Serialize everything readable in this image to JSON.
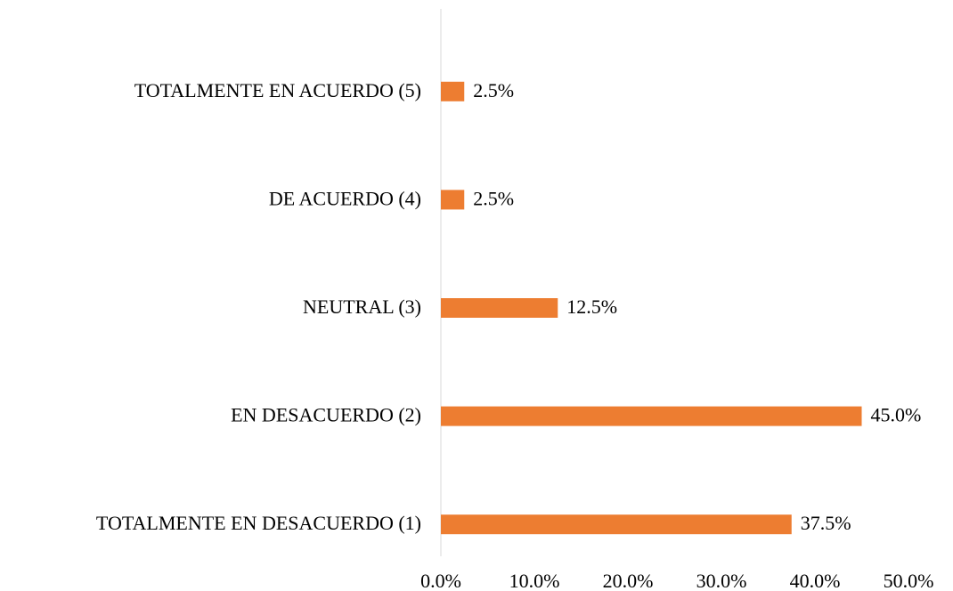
{
  "chart_data": {
    "type": "bar",
    "orientation": "horizontal",
    "categories": [
      "TOTALMENTE EN ACUERDO (5)",
      "DE ACUERDO (4)",
      "NEUTRAL (3)",
      "EN DESACUERDO (2)",
      "TOTALMENTE EN DESACUERDO (1)"
    ],
    "values": [
      2.5,
      2.5,
      12.5,
      45.0,
      37.5
    ],
    "value_labels": [
      "2.5%",
      "2.5%",
      "12.5%",
      "45.0%",
      "37.5%"
    ],
    "color": "#ed7d31",
    "xlim": [
      0,
      50
    ],
    "xticks": [
      {
        "value": 0,
        "label": "0.0%"
      },
      {
        "value": 10,
        "label": "10.0%"
      },
      {
        "value": 20,
        "label": "20.0%"
      },
      {
        "value": 30,
        "label": "30.0%"
      },
      {
        "value": 40,
        "label": "40.0%"
      },
      {
        "value": 50,
        "label": "50.0%"
      }
    ],
    "grid": false
  }
}
